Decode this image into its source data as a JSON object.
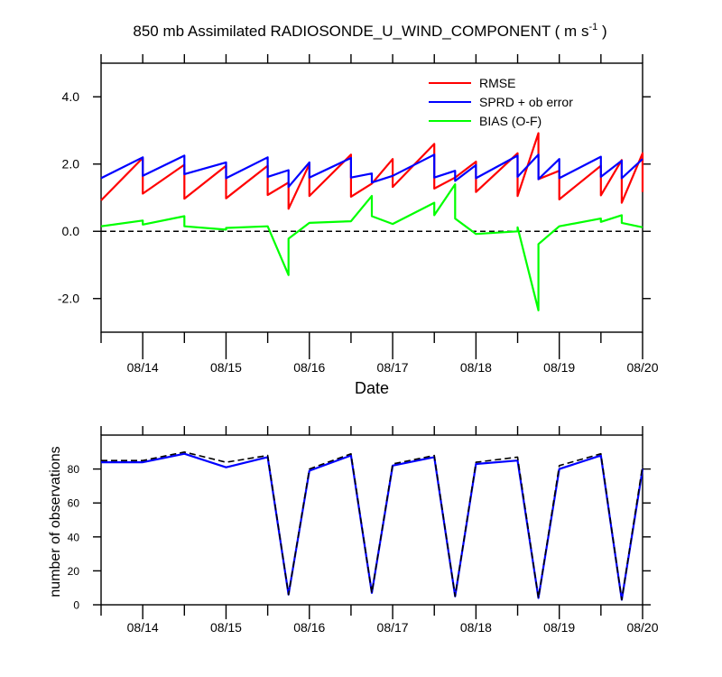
{
  "title_main": "850 mb Assimilated RADIOSONDE_U_WIND_COMPONENT ( m s",
  "title_exp": "-1",
  "title_end": " )",
  "chart_data": [
    {
      "type": "line",
      "xlabel": "Date",
      "ylabel": "",
      "xlim": [
        "08/13 12:00",
        "08/20 00:00"
      ],
      "ylim": [
        -3.0,
        5.0
      ],
      "x_tick_labels": [
        "08/14",
        "08/15",
        "08/16",
        "08/17",
        "08/18",
        "08/19",
        "08/20"
      ],
      "y_tick_labels": [
        "-2.0",
        "0.0",
        "2.0",
        "4.0"
      ],
      "y_ticks": [
        -2,
        0,
        2,
        4
      ],
      "reference_line": 0,
      "legend": {
        "placement": "top-right"
      },
      "series": [
        {
          "name": "RMSE",
          "color": "#ff0000",
          "points": [
            [
              "08/13 12:00",
              0.92
            ],
            [
              "08/14 00:00",
              2.18
            ],
            [
              "08/14 00:00",
              1.12
            ],
            [
              "08/14 12:00",
              1.98
            ],
            [
              "08/14 12:00",
              0.97
            ],
            [
              "08/15 00:00",
              1.95
            ],
            [
              "08/15 00:00",
              0.98
            ],
            [
              "08/15 12:00",
              1.95
            ],
            [
              "08/15 12:00",
              1.08
            ],
            [
              "08/15 18:00",
              1.45
            ],
            [
              "08/15 18:00",
              0.67
            ],
            [
              "08/16 00:00",
              2.0
            ],
            [
              "08/16 00:00",
              1.05
            ],
            [
              "08/16 12:00",
              2.28
            ],
            [
              "08/16 12:00",
              1.03
            ],
            [
              "08/16 18:00",
              1.42
            ],
            [
              "08/17 00:00",
              2.15
            ],
            [
              "08/17 00:00",
              1.32
            ],
            [
              "08/17 12:00",
              2.6
            ],
            [
              "08/17 12:00",
              1.27
            ],
            [
              "08/17 18:00",
              1.6
            ],
            [
              "08/18 00:00",
              2.07
            ],
            [
              "08/18 00:00",
              1.17
            ],
            [
              "08/18 12:00",
              2.32
            ],
            [
              "08/18 12:00",
              1.05
            ],
            [
              "08/18 18:00",
              2.92
            ],
            [
              "08/18 18:00",
              1.55
            ],
            [
              "08/19 00:00",
              1.8
            ],
            [
              "08/19 00:00",
              0.95
            ],
            [
              "08/19 12:00",
              1.95
            ],
            [
              "08/19 12:00",
              1.07
            ],
            [
              "08/19 18:00",
              2.12
            ],
            [
              "08/19 18:00",
              0.85
            ],
            [
              "08/20 00:00",
              2.32
            ],
            [
              "08/20 00:00",
              1.17
            ]
          ]
        },
        {
          "name": "SPRD + ob error",
          "color": "#0000ff",
          "points": [
            [
              "08/13 12:00",
              1.58
            ],
            [
              "08/14 00:00",
              2.2
            ],
            [
              "08/14 00:00",
              1.65
            ],
            [
              "08/14 12:00",
              2.25
            ],
            [
              "08/14 12:00",
              1.7
            ],
            [
              "08/15 00:00",
              2.05
            ],
            [
              "08/15 00:00",
              1.58
            ],
            [
              "08/15 12:00",
              2.2
            ],
            [
              "08/15 12:00",
              1.62
            ],
            [
              "08/15 18:00",
              1.82
            ],
            [
              "08/15 18:00",
              1.32
            ],
            [
              "08/16 00:00",
              2.05
            ],
            [
              "08/16 00:00",
              1.6
            ],
            [
              "08/16 12:00",
              2.18
            ],
            [
              "08/16 12:00",
              1.6
            ],
            [
              "08/16 18:00",
              1.72
            ],
            [
              "08/16 18:00",
              1.45
            ],
            [
              "08/17 00:00",
              1.65
            ],
            [
              "08/17 12:00",
              2.28
            ],
            [
              "08/17 12:00",
              1.6
            ],
            [
              "08/17 18:00",
              1.8
            ],
            [
              "08/17 18:00",
              1.5
            ],
            [
              "08/18 00:00",
              1.97
            ],
            [
              "08/18 00:00",
              1.58
            ],
            [
              "08/18 12:00",
              2.25
            ],
            [
              "08/18 12:00",
              1.62
            ],
            [
              "08/18 18:00",
              2.28
            ],
            [
              "08/18 18:00",
              1.55
            ],
            [
              "08/19 00:00",
              2.15
            ],
            [
              "08/19 00:00",
              1.58
            ],
            [
              "08/19 12:00",
              2.22
            ],
            [
              "08/19 12:00",
              1.62
            ],
            [
              "08/19 18:00",
              2.1
            ],
            [
              "08/19 18:00",
              1.58
            ],
            [
              "08/20 00:00",
              2.15
            ]
          ]
        },
        {
          "name": "BIAS (O-F)",
          "color": "#00ff00",
          "points": [
            [
              "08/13 12:00",
              0.15
            ],
            [
              "08/14 00:00",
              0.32
            ],
            [
              "08/14 00:00",
              0.2
            ],
            [
              "08/14 12:00",
              0.45
            ],
            [
              "08/14 12:00",
              0.15
            ],
            [
              "08/15 00:00",
              0.05
            ],
            [
              "08/15 00:00",
              0.1
            ],
            [
              "08/15 12:00",
              0.15
            ],
            [
              "08/15 18:00",
              -1.3
            ],
            [
              "08/15 18:00",
              -0.22
            ],
            [
              "08/16 00:00",
              0.25
            ],
            [
              "08/16 12:00",
              0.3
            ],
            [
              "08/16 18:00",
              1.05
            ],
            [
              "08/16 18:00",
              0.45
            ],
            [
              "08/17 00:00",
              0.22
            ],
            [
              "08/17 12:00",
              0.85
            ],
            [
              "08/17 12:00",
              0.48
            ],
            [
              "08/17 18:00",
              1.4
            ],
            [
              "08/17 18:00",
              0.38
            ],
            [
              "08/18 00:00",
              -0.08
            ],
            [
              "08/18 12:00",
              0.0
            ],
            [
              "08/18 12:00",
              0.12
            ],
            [
              "08/18 18:00",
              -2.35
            ],
            [
              "08/18 18:00",
              -0.38
            ],
            [
              "08/19 00:00",
              0.15
            ],
            [
              "08/19 12:00",
              0.38
            ],
            [
              "08/19 12:00",
              0.28
            ],
            [
              "08/19 18:00",
              0.48
            ],
            [
              "08/19 18:00",
              0.25
            ],
            [
              "08/20 00:00",
              0.12
            ]
          ]
        }
      ]
    },
    {
      "type": "line",
      "xlabel": "",
      "ylabel": "number of observations",
      "xlim": [
        "08/13 12:00",
        "08/20 00:00"
      ],
      "ylim": [
        0,
        100
      ],
      "x_tick_labels": [
        "08/14",
        "08/15",
        "08/16",
        "08/17",
        "08/18",
        "08/19",
        "08/20"
      ],
      "y_tick_labels": [
        "0",
        "20",
        "40",
        "60",
        "80"
      ],
      "y_ticks": [
        0,
        20,
        40,
        60,
        80
      ],
      "series": [
        {
          "color": "#0000ff",
          "line_style": "solid",
          "points": [
            [
              "08/13 12:00",
              84
            ],
            [
              "08/14 00:00",
              84
            ],
            [
              "08/14 12:00",
              89
            ],
            [
              "08/15 00:00",
              81
            ],
            [
              "08/15 12:00",
              87
            ],
            [
              "08/15 18:00",
              6
            ],
            [
              "08/16 00:00",
              79
            ],
            [
              "08/16 12:00",
              88
            ],
            [
              "08/16 18:00",
              7
            ],
            [
              "08/17 00:00",
              82
            ],
            [
              "08/17 12:00",
              87
            ],
            [
              "08/17 18:00",
              5
            ],
            [
              "08/18 00:00",
              83
            ],
            [
              "08/18 12:00",
              85
            ],
            [
              "08/18 18:00",
              4
            ],
            [
              "08/19 00:00",
              80
            ],
            [
              "08/19 12:00",
              88
            ],
            [
              "08/19 18:00",
              3
            ],
            [
              "08/20 00:00",
              80
            ]
          ]
        },
        {
          "color": "#000000",
          "line_style": "dashed",
          "points": [
            [
              "08/13 12:00",
              85
            ],
            [
              "08/14 00:00",
              85
            ],
            [
              "08/14 12:00",
              90
            ],
            [
              "08/15 00:00",
              84
            ],
            [
              "08/15 12:00",
              88
            ],
            [
              "08/15 18:00",
              6
            ],
            [
              "08/16 00:00",
              80
            ],
            [
              "08/16 12:00",
              89
            ],
            [
              "08/16 18:00",
              7
            ],
            [
              "08/17 00:00",
              83
            ],
            [
              "08/17 12:00",
              88
            ],
            [
              "08/17 18:00",
              5
            ],
            [
              "08/18 00:00",
              84
            ],
            [
              "08/18 12:00",
              87
            ],
            [
              "08/18 18:00",
              4
            ],
            [
              "08/19 00:00",
              82
            ],
            [
              "08/19 12:00",
              89
            ],
            [
              "08/19 18:00",
              3
            ],
            [
              "08/20 00:00",
              82
            ]
          ]
        }
      ]
    }
  ]
}
